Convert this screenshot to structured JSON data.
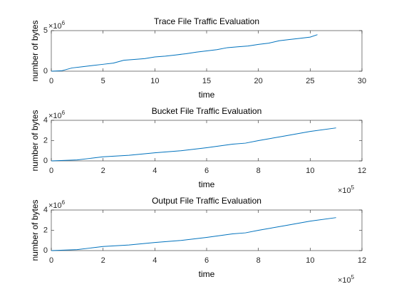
{
  "chart_data": [
    {
      "type": "line",
      "title": "Trace File Traffic Evaluation",
      "xlabel": "time",
      "ylabel": "number of bytes",
      "y_exponent_base": "×10",
      "y_exponent": 6,
      "color": "#0072bd",
      "x": [
        0,
        1,
        2,
        3,
        4,
        5,
        6,
        7,
        8,
        9,
        10,
        11,
        12,
        13,
        14,
        15,
        16,
        17,
        18,
        19,
        20,
        21,
        22,
        23,
        24,
        25,
        25.7
      ],
      "series": [
        {
          "name": "trace",
          "color": "#0072bd",
          "values": [
            0,
            0.05,
            0.4,
            0.55,
            0.7,
            0.85,
            1.0,
            1.35,
            1.45,
            1.55,
            1.75,
            1.85,
            2.0,
            2.15,
            2.35,
            2.5,
            2.65,
            2.9,
            3.0,
            3.1,
            3.3,
            3.45,
            3.75,
            3.9,
            4.05,
            4.2,
            4.5
          ]
        }
      ],
      "xlim": [
        0,
        30
      ],
      "xticks": [
        0,
        5,
        10,
        15,
        20,
        25,
        30
      ],
      "ylim": [
        0,
        5
      ],
      "yticks": [
        0,
        5
      ]
    },
    {
      "type": "line",
      "title": "Bucket File Traffic Evaluation",
      "xlabel": "time",
      "ylabel": "number of bytes",
      "y_exponent_base": "×10",
      "y_exponent": 6,
      "x_exponent_base": "×10",
      "x_exponent": 5,
      "color": "#0072bd",
      "x": [
        0,
        1,
        1.5,
        2,
        3,
        4,
        5,
        6,
        7,
        7.5,
        8,
        9,
        10,
        11
      ],
      "series": [
        {
          "name": "bucket",
          "color": "#0072bd",
          "values": [
            0,
            0.1,
            0.25,
            0.4,
            0.55,
            0.8,
            1.0,
            1.3,
            1.65,
            1.75,
            2.0,
            2.45,
            2.9,
            3.25
          ]
        }
      ],
      "xlim": [
        0,
        12
      ],
      "xticks": [
        0,
        2,
        4,
        6,
        8,
        10,
        12
      ],
      "ylim": [
        0,
        4
      ],
      "yticks": [
        0,
        2,
        4
      ]
    },
    {
      "type": "line",
      "title": "Output File Traffic Evaluation",
      "xlabel": "time",
      "ylabel": "number of bytes",
      "y_exponent_base": "×10",
      "y_exponent": 6,
      "x_exponent_base": "×10",
      "x_exponent": 5,
      "color": "#0072bd",
      "x": [
        0,
        1,
        1.5,
        2,
        3,
        4,
        5,
        6,
        7,
        7.5,
        8,
        9,
        10,
        11
      ],
      "series": [
        {
          "name": "output",
          "color": "#0072bd",
          "values": [
            0,
            0.1,
            0.25,
            0.4,
            0.55,
            0.8,
            1.0,
            1.3,
            1.65,
            1.75,
            2.0,
            2.45,
            2.9,
            3.25
          ]
        }
      ],
      "xlim": [
        0,
        12
      ],
      "xticks": [
        0,
        2,
        4,
        6,
        8,
        10,
        12
      ],
      "ylim": [
        0,
        4
      ],
      "yticks": [
        0,
        2,
        4
      ]
    }
  ]
}
